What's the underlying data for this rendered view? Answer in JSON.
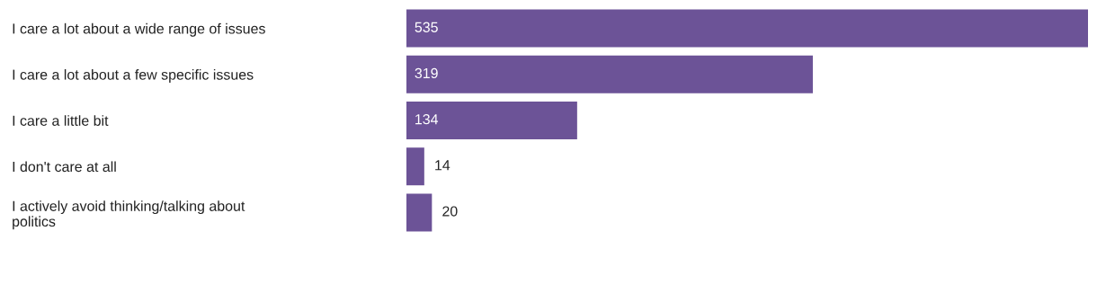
{
  "chart_data": {
    "type": "bar",
    "orientation": "horizontal",
    "categories": [
      "I care a lot about a wide range of issues",
      "I care a lot about a few specific issues",
      "I care a little bit",
      "I don't care at all",
      "I actively avoid thinking/talking about\npolitics"
    ],
    "values": [
      535,
      319,
      134,
      14,
      20
    ],
    "color": "#6c5397",
    "data_labels": true,
    "grid": false,
    "legend": false
  }
}
